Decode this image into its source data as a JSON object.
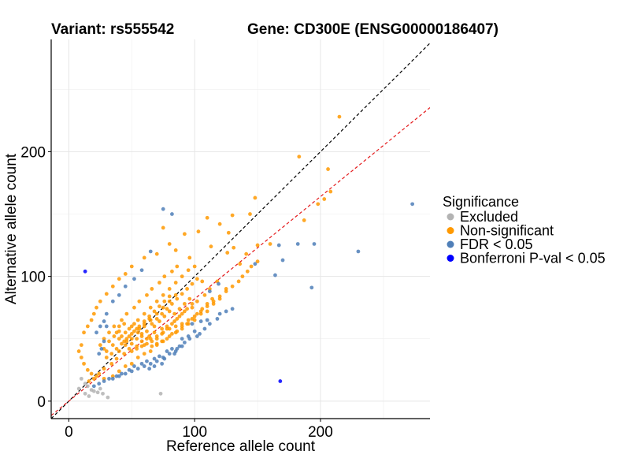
{
  "chart_data": {
    "type": "scatter",
    "title_left": "Variant: rs555542",
    "title_right": "Gene: CD300E (ENSG00000186407)",
    "xlabel": "Reference allele count",
    "ylabel": "Alternative allele count",
    "xlim": [
      -14,
      287
    ],
    "ylim": [
      -14,
      290
    ],
    "xticks": [
      0,
      100,
      200
    ],
    "yticks": [
      0,
      100,
      200
    ],
    "x_minor_gridlines": [
      50,
      150,
      250
    ],
    "y_minor_gridlines": [
      50,
      150,
      250
    ],
    "grid": true,
    "legend_position": "right",
    "legend": {
      "title": "Significance",
      "entries": [
        {
          "label": "Excluded",
          "color": "#b3b3b3"
        },
        {
          "label": "Non-significant",
          "color": "#ff9900"
        },
        {
          "label": "FDR < 0.05",
          "color": "#4f7fb8"
        },
        {
          "label": "Bonferroni P-val < 0.05",
          "color": "#0000ff"
        }
      ]
    },
    "reference_lines": [
      {
        "name": "identity",
        "slope": 1.0,
        "intercept": 0,
        "color": "#000000",
        "dash": "dashed"
      },
      {
        "name": "fit",
        "slope": 0.82,
        "intercept": 0,
        "color": "#e41a1c",
        "dash": "dashed"
      }
    ],
    "series": [
      {
        "name": "Excluded",
        "color": "#b3b3b3",
        "points": [
          [
            10,
            18
          ],
          [
            13,
            6
          ],
          [
            15,
            12
          ],
          [
            18,
            9
          ],
          [
            20,
            8
          ],
          [
            23,
            7
          ],
          [
            25,
            10
          ],
          [
            27,
            6
          ],
          [
            31,
            3
          ],
          [
            13,
            14
          ],
          [
            73,
            6
          ],
          [
            8,
            10
          ],
          [
            16,
            4
          ]
        ]
      },
      {
        "name": "Non-significant",
        "color": "#ff9900",
        "points": [
          [
            215,
            228
          ],
          [
            183,
            196
          ],
          [
            206,
            186
          ],
          [
            208,
            168
          ],
          [
            203,
            162
          ],
          [
            198,
            158
          ],
          [
            187,
            145
          ],
          [
            148,
            163
          ],
          [
            130,
            149
          ],
          [
            120,
            142
          ],
          [
            110,
            147
          ],
          [
            127,
            135
          ],
          [
            144,
            150
          ],
          [
            150,
            125
          ],
          [
            160,
            126
          ],
          [
            92,
            134
          ],
          [
            103,
            136
          ],
          [
            75,
            139
          ],
          [
            80,
            126
          ],
          [
            113,
            124
          ],
          [
            131,
            123
          ],
          [
            126,
            119
          ],
          [
            141,
            118
          ],
          [
            136,
            110
          ],
          [
            96,
            115
          ],
          [
            85,
            121
          ],
          [
            70,
            118
          ],
          [
            60,
            115
          ],
          [
            50,
            108
          ],
          [
            45,
            102
          ],
          [
            40,
            98
          ],
          [
            35,
            92
          ],
          [
            30,
            86
          ],
          [
            25,
            80
          ],
          [
            22,
            75
          ],
          [
            20,
            70
          ],
          [
            18,
            65
          ],
          [
            15,
            60
          ],
          [
            12,
            55
          ],
          [
            10,
            45
          ],
          [
            8,
            40
          ],
          [
            10,
            35
          ],
          [
            12,
            30
          ],
          [
            15,
            25
          ],
          [
            18,
            22
          ],
          [
            22,
            20
          ],
          [
            28,
            18
          ],
          [
            35,
            20
          ],
          [
            40,
            24
          ],
          [
            45,
            28
          ],
          [
            50,
            30
          ],
          [
            55,
            35
          ],
          [
            60,
            38
          ],
          [
            65,
            40
          ],
          [
            70,
            45
          ],
          [
            75,
            48
          ],
          [
            80,
            52
          ],
          [
            85,
            55
          ],
          [
            90,
            58
          ],
          [
            95,
            62
          ],
          [
            100,
            65
          ],
          [
            105,
            70
          ],
          [
            110,
            72
          ],
          [
            115,
            78
          ],
          [
            120,
            82
          ],
          [
            125,
            88
          ],
          [
            130,
            92
          ],
          [
            135,
            96
          ],
          [
            138,
            100
          ],
          [
            142,
            104
          ],
          [
            145,
            108
          ],
          [
            150,
            112
          ],
          [
            118,
            96
          ],
          [
            112,
            90
          ],
          [
            108,
            85
          ],
          [
            102,
            80
          ],
          [
            98,
            75
          ],
          [
            92,
            72
          ],
          [
            88,
            68
          ],
          [
            84,
            64
          ],
          [
            78,
            60
          ],
          [
            74,
            58
          ],
          [
            68,
            55
          ],
          [
            64,
            52
          ],
          [
            58,
            48
          ],
          [
            54,
            44
          ],
          [
            48,
            42
          ],
          [
            44,
            38
          ],
          [
            38,
            34
          ],
          [
            34,
            30
          ],
          [
            28,
            26
          ],
          [
            24,
            22
          ],
          [
            20,
            18
          ],
          [
            16,
            16
          ],
          [
            30,
            40
          ],
          [
            35,
            45
          ],
          [
            40,
            50
          ],
          [
            45,
            55
          ],
          [
            50,
            60
          ],
          [
            55,
            65
          ],
          [
            60,
            70
          ],
          [
            65,
            75
          ],
          [
            70,
            80
          ],
          [
            75,
            85
          ],
          [
            80,
            90
          ],
          [
            85,
            95
          ],
          [
            90,
            100
          ],
          [
            95,
            105
          ],
          [
            100,
            108
          ],
          [
            28,
            50
          ],
          [
            32,
            55
          ],
          [
            36,
            60
          ],
          [
            42,
            65
          ],
          [
            46,
            70
          ],
          [
            52,
            75
          ],
          [
            56,
            80
          ],
          [
            62,
            85
          ],
          [
            66,
            90
          ],
          [
            72,
            95
          ],
          [
            76,
            100
          ],
          [
            82,
            104
          ],
          [
            86,
            108
          ],
          [
            40,
            60
          ],
          [
            44,
            62
          ],
          [
            48,
            58
          ],
          [
            52,
            62
          ],
          [
            56,
            58
          ],
          [
            60,
            62
          ],
          [
            64,
            66
          ],
          [
            68,
            60
          ],
          [
            72,
            64
          ],
          [
            76,
            68
          ],
          [
            80,
            72
          ],
          [
            84,
            70
          ],
          [
            88,
            74
          ],
          [
            92,
            78
          ],
          [
            96,
            82
          ],
          [
            30,
            35
          ],
          [
            34,
            38
          ],
          [
            38,
            42
          ],
          [
            42,
            46
          ],
          [
            46,
            50
          ],
          [
            50,
            54
          ],
          [
            54,
            58
          ],
          [
            58,
            52
          ],
          [
            62,
            56
          ],
          [
            66,
            62
          ],
          [
            70,
            66
          ],
          [
            74,
            70
          ],
          [
            78,
            74
          ],
          [
            82,
            78
          ],
          [
            86,
            82
          ],
          [
            90,
            86
          ],
          [
            94,
            90
          ],
          [
            98,
            94
          ],
          [
            102,
            98
          ],
          [
            106,
            96
          ],
          [
            60,
            45
          ],
          [
            65,
            50
          ],
          [
            70,
            52
          ],
          [
            75,
            55
          ],
          [
            80,
            58
          ],
          [
            85,
            60
          ],
          [
            90,
            62
          ],
          [
            95,
            65
          ],
          [
            100,
            68
          ],
          [
            105,
            72
          ],
          [
            110,
            76
          ],
          [
            115,
            80
          ],
          [
            120,
            84
          ],
          [
            125,
            90
          ],
          [
            40,
            40
          ],
          [
            45,
            45
          ],
          [
            50,
            50
          ],
          [
            55,
            55
          ],
          [
            60,
            60
          ],
          [
            65,
            65
          ],
          [
            70,
            70
          ],
          [
            75,
            75
          ],
          [
            80,
            80
          ],
          [
            85,
            85
          ],
          [
            38,
            55
          ],
          [
            42,
            52
          ],
          [
            46,
            48
          ],
          [
            50,
            46
          ],
          [
            54,
            50
          ],
          [
            58,
            54
          ],
          [
            62,
            50
          ],
          [
            66,
            48
          ],
          [
            70,
            50
          ],
          [
            74,
            54
          ],
          [
            78,
            58
          ],
          [
            82,
            62
          ],
          [
            86,
            66
          ],
          [
            90,
            70
          ],
          [
            94,
            74
          ],
          [
            98,
            78
          ],
          [
            25,
            45
          ],
          [
            28,
            42
          ],
          [
            32,
            48
          ],
          [
            36,
            52
          ],
          [
            40,
            56
          ],
          [
            44,
            48
          ],
          [
            48,
            52
          ],
          [
            52,
            56
          ],
          [
            56,
            60
          ],
          [
            60,
            64
          ],
          [
            64,
            68
          ],
          [
            68,
            72
          ],
          [
            72,
            76
          ],
          [
            76,
            80
          ],
          [
            80,
            84
          ],
          [
            50,
            40
          ],
          [
            54,
            42
          ],
          [
            58,
            44
          ],
          [
            62,
            46
          ],
          [
            66,
            44
          ],
          [
            70,
            46
          ],
          [
            74,
            48
          ],
          [
            78,
            50
          ],
          [
            82,
            54
          ],
          [
            86,
            56
          ],
          [
            90,
            60
          ],
          [
            94,
            62
          ],
          [
            98,
            66
          ],
          [
            102,
            70
          ],
          [
            106,
            74
          ],
          [
            110,
            78
          ],
          [
            114,
            82
          ]
        ]
      },
      {
        "name": "FDR < 0.05",
        "color": "#4f7fb8",
        "points": [
          [
            273,
            158
          ],
          [
            230,
            120
          ],
          [
            195,
            126
          ],
          [
            182,
            126
          ],
          [
            193,
            91
          ],
          [
            170,
            113
          ],
          [
            167,
            125
          ],
          [
            164,
            101
          ],
          [
            148,
            110
          ],
          [
            119,
            94
          ],
          [
            112,
            88
          ],
          [
            125,
            72
          ],
          [
            110,
            65
          ],
          [
            105,
            64
          ],
          [
            100,
            56
          ],
          [
            95,
            52
          ],
          [
            92,
            47
          ],
          [
            88,
            44
          ],
          [
            85,
            40
          ],
          [
            80,
            38
          ],
          [
            75,
            35
          ],
          [
            70,
            32
          ],
          [
            65,
            30
          ],
          [
            60,
            28
          ],
          [
            55,
            26
          ],
          [
            50,
            24
          ],
          [
            45,
            22
          ],
          [
            40,
            20
          ],
          [
            35,
            18
          ],
          [
            130,
            74
          ],
          [
            118,
            66
          ],
          [
            98,
            62
          ],
          [
            102,
            52
          ],
          [
            90,
            50
          ],
          [
            82,
            42
          ],
          [
            78,
            40
          ],
          [
            72,
            36
          ],
          [
            68,
            34
          ],
          [
            62,
            32
          ],
          [
            58,
            30
          ],
          [
            52,
            28
          ],
          [
            48,
            25
          ],
          [
            42,
            22
          ],
          [
            38,
            20
          ],
          [
            32,
            18
          ],
          [
            28,
            16
          ],
          [
            24,
            14
          ],
          [
            20,
            12
          ],
          [
            75,
            154
          ],
          [
            82,
            150
          ],
          [
            65,
            120
          ],
          [
            58,
            105
          ],
          [
            52,
            98
          ],
          [
            45,
            92
          ],
          [
            40,
            85
          ],
          [
            35,
            80
          ],
          [
            30,
            70
          ],
          [
            28,
            64
          ],
          [
            25,
            60
          ],
          [
            22,
            55
          ],
          [
            30,
            60
          ],
          [
            28,
            48
          ],
          [
            26,
            42
          ],
          [
            24,
            38
          ],
          [
            120,
            70
          ],
          [
            112,
            62
          ],
          [
            108,
            58
          ],
          [
            104,
            54
          ],
          [
            96,
            50
          ],
          [
            90,
            44
          ],
          [
            86,
            42
          ],
          [
            84,
            38
          ],
          [
            76,
            34
          ],
          [
            74,
            30
          ],
          [
            68,
            28
          ],
          [
            64,
            26
          ]
        ]
      },
      {
        "name": "Bonferroni P-val < 0.05",
        "color": "#0000ff",
        "points": [
          [
            13,
            104
          ],
          [
            168,
            16
          ]
        ]
      }
    ]
  }
}
